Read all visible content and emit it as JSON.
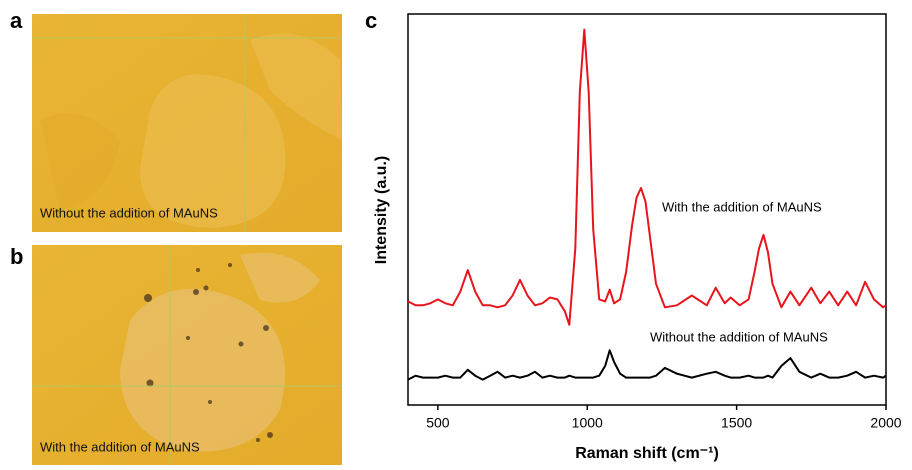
{
  "panels": [
    {
      "label": "a",
      "caption": "Without the addition of MAuNS"
    },
    {
      "label": "b",
      "caption": "With the addition of MAuNS"
    },
    {
      "label": "c"
    }
  ],
  "chart_data": {
    "type": "line",
    "xlabel": "Raman shift (cm⁻¹)",
    "ylabel": "Intensity (a.u.)",
    "xlim": [
      400,
      2000
    ],
    "xticks": [
      500,
      1000,
      1500,
      2000
    ],
    "ylim": [
      0,
      100
    ],
    "x": [
      400,
      425,
      450,
      475,
      500,
      525,
      550,
      575,
      600,
      625,
      650,
      675,
      700,
      725,
      750,
      775,
      800,
      825,
      850,
      875,
      900,
      925,
      940,
      960,
      975,
      990,
      1005,
      1020,
      1040,
      1060,
      1075,
      1090,
      1110,
      1130,
      1150,
      1165,
      1180,
      1195,
      1210,
      1230,
      1260,
      1300,
      1350,
      1400,
      1430,
      1460,
      1480,
      1510,
      1540,
      1560,
      1575,
      1590,
      1605,
      1620,
      1650,
      1680,
      1710,
      1750,
      1780,
      1810,
      1840,
      1870,
      1900,
      1930,
      1960,
      1990,
      2000
    ],
    "series": [
      {
        "name": "With the addition of MAuNS",
        "color": "#e8141c",
        "values": [
          26.5,
          25.5,
          25.5,
          26,
          27,
          26,
          25.5,
          29,
          34.5,
          29,
          25.5,
          25.5,
          25,
          25.5,
          28,
          32,
          28,
          25.5,
          26,
          27.5,
          27,
          24,
          20.5,
          40,
          80,
          96,
          80,
          45,
          27,
          26.5,
          29.5,
          26,
          27,
          34,
          46,
          53,
          55.5,
          52,
          43,
          31,
          25,
          25.5,
          28,
          25.5,
          30,
          26,
          27.5,
          25.5,
          27,
          34,
          40,
          43.5,
          39,
          31,
          25,
          29,
          25.5,
          30,
          26,
          29,
          25.5,
          29,
          25.5,
          31.5,
          27,
          25,
          25.5
        ]
      },
      {
        "name": "Without the addition of MAuNS",
        "color": "#000000",
        "values": [
          6.5,
          7.5,
          7,
          7,
          7,
          7.5,
          7,
          7,
          9,
          7.5,
          6.5,
          7.5,
          8.5,
          7,
          7.5,
          7,
          7.5,
          8.5,
          7,
          7.5,
          7,
          7,
          7.5,
          7,
          7,
          7,
          7,
          7,
          7.5,
          10,
          14,
          11,
          8,
          7,
          7,
          7,
          7,
          7,
          7,
          7.5,
          9.5,
          8,
          7,
          8,
          8.5,
          7.5,
          7,
          7,
          7.5,
          7,
          7,
          7,
          7.5,
          7,
          10,
          12,
          8.5,
          7,
          8,
          7,
          7,
          7.5,
          8.5,
          7,
          7.5,
          7,
          7.5
        ]
      }
    ]
  }
}
